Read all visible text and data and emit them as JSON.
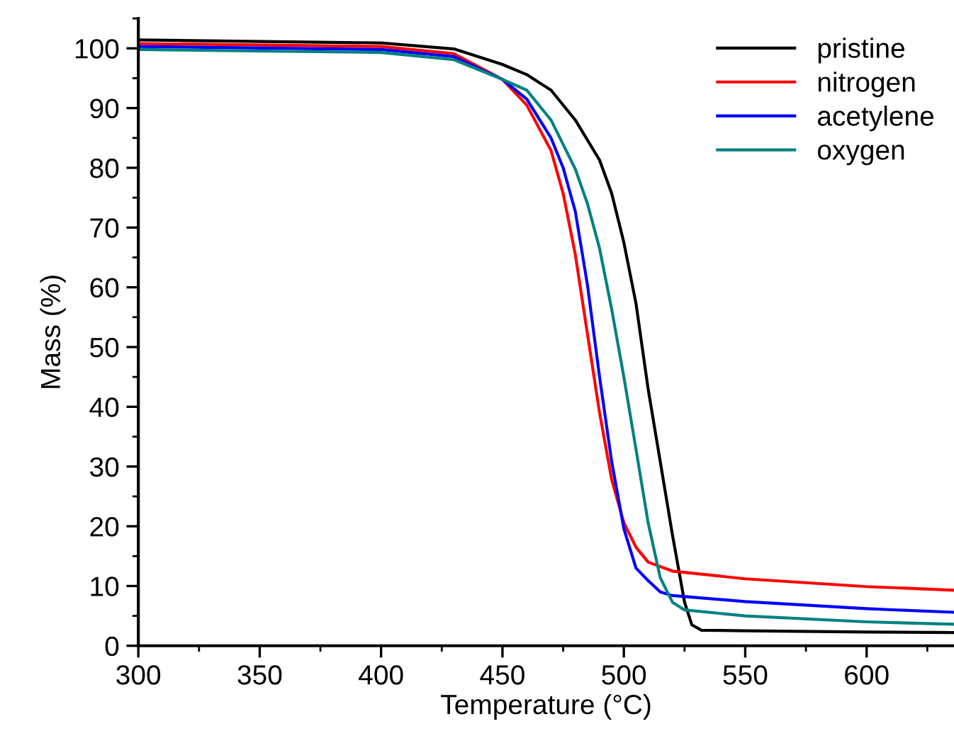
{
  "chart_data": {
    "type": "line",
    "xlabel": "Temperature (°C)",
    "ylabel": "Mass (%)",
    "xlim": [
      300,
      636
    ],
    "ylim": [
      0,
      105
    ],
    "xticks": [
      300,
      350,
      400,
      450,
      500,
      550,
      600
    ],
    "yticks": [
      0,
      10,
      20,
      30,
      40,
      50,
      60,
      70,
      80,
      90,
      100
    ],
    "legend": "top right",
    "grid": false,
    "marker": "none",
    "line_style": "solid",
    "series": [
      {
        "name": "pristine",
        "color": "#000000",
        "x": [
          300,
          400,
          430,
          450,
          460,
          470,
          480,
          490,
          495,
          500,
          505,
          510,
          515,
          520,
          525,
          528,
          532,
          550,
          600,
          636
        ],
        "values": [
          101.4,
          100.9,
          99.9,
          97.3,
          95.6,
          93,
          88,
          81.3,
          75.7,
          67.5,
          57.3,
          43,
          30.8,
          18.6,
          7.3,
          3.5,
          2.6,
          2.5,
          2.3,
          2.2
        ]
      },
      {
        "name": "nitrogen",
        "color": "#ff0000",
        "x": [
          300,
          400,
          430,
          450,
          460,
          470,
          475,
          480,
          485,
          490,
          495,
          500,
          505,
          510,
          520,
          550,
          600,
          636
        ],
        "values": [
          100.8,
          100.3,
          99.1,
          94.8,
          90.5,
          82.9,
          75.7,
          65.5,
          52.2,
          39,
          27.8,
          20.6,
          16.5,
          14,
          12.5,
          11.2,
          9.9,
          9.3
        ]
      },
      {
        "name": "acetylene",
        "color": "#0000ff",
        "x": [
          300,
          400,
          430,
          450,
          460,
          470,
          475,
          480,
          485,
          490,
          495,
          500,
          505,
          510,
          515,
          520,
          550,
          600,
          636
        ],
        "values": [
          100.3,
          99.8,
          98.6,
          94.8,
          91.5,
          85,
          80,
          72.7,
          60.4,
          45,
          30.8,
          19.6,
          13,
          10.9,
          9,
          8.4,
          7.4,
          6.2,
          5.6
        ]
      },
      {
        "name": "oxygen",
        "color": "#008080",
        "x": [
          300,
          400,
          430,
          450,
          460,
          470,
          480,
          485,
          490,
          495,
          500,
          505,
          510,
          515,
          520,
          525,
          550,
          600,
          636
        ],
        "values": [
          99.8,
          99.3,
          98.1,
          94.8,
          93,
          88,
          79.8,
          74,
          66.5,
          56.3,
          45,
          32.9,
          20.6,
          11.4,
          7.3,
          6,
          5,
          4,
          3.6
        ]
      }
    ]
  }
}
